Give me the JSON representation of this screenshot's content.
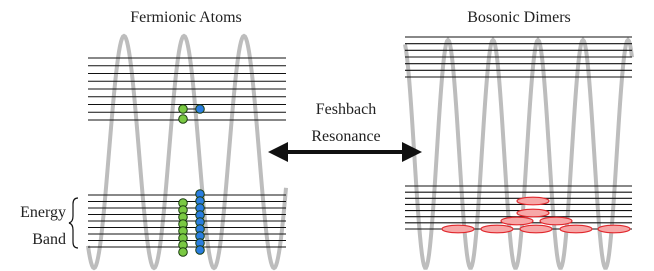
{
  "left_panel": {
    "title": "Fermionic Atoms"
  },
  "right_panel": {
    "title": "Bosonic Dimers"
  },
  "arrow_label": {
    "line1": "Feshbach",
    "line2": "Resonance"
  },
  "band_label": {
    "line1": "Energy",
    "line2": "Band"
  }
}
